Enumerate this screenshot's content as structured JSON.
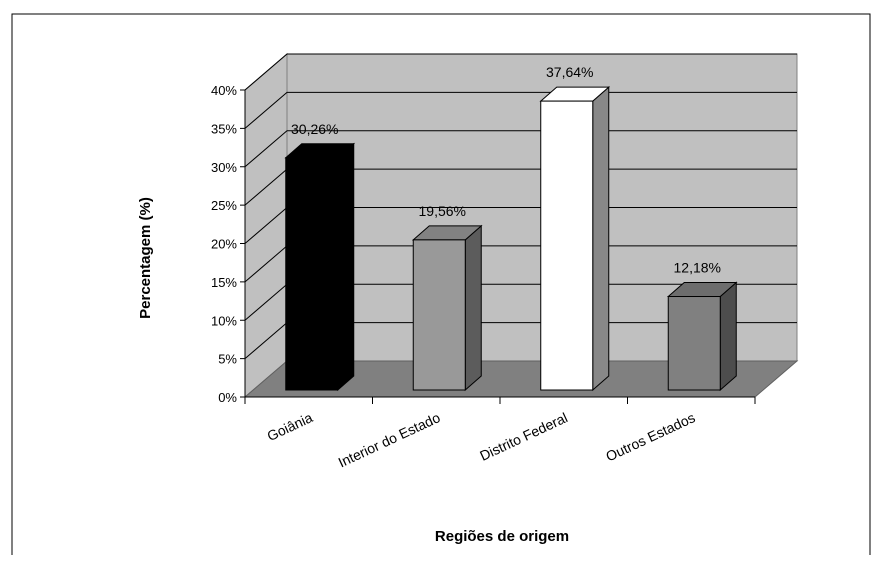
{
  "chart_data": {
    "type": "bar",
    "categories": [
      "Goiânia",
      "Interior do Estado",
      "Distrito Federal",
      "Outros Estados"
    ],
    "values": [
      30.26,
      19.56,
      37.64,
      12.18
    ],
    "data_labels": [
      "30,26%",
      "19,56%",
      "37,64%",
      "12,18%"
    ],
    "bar_colors": [
      "#000000",
      "#999999",
      "#ffffff",
      "#808080"
    ],
    "ylabel": "Percentagem (%)",
    "xlabel": "Regiões de origem",
    "ylim": [
      0,
      40
    ],
    "ytick_values": [
      0,
      5,
      10,
      15,
      20,
      25,
      30,
      35,
      40
    ],
    "ytick_labels": [
      "0%",
      "5%",
      "10%",
      "15%",
      "20%",
      "25%",
      "30%",
      "35%",
      "40%"
    ],
    "grid": true,
    "legend": "none",
    "style": "3d",
    "wall_color": "#c0c0c0",
    "floor_color": "#808080"
  }
}
